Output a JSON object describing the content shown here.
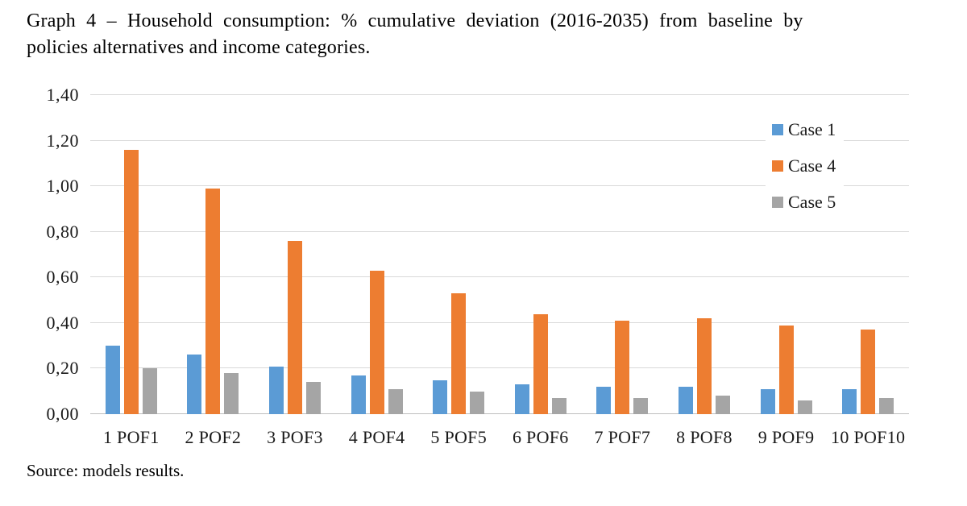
{
  "title_lines": [
    "Graph 4 – Household consumption: % cumulative deviation (2016-2035) from baseline by",
    "policies alternatives and income categories."
  ],
  "source_note": "Source: models results.",
  "colors": {
    "case1": "#5B9BD5",
    "case4": "#ED7D31",
    "case5": "#A5A5A5",
    "gridline": "#D9D9D9",
    "axis_line": "#BFBFBF",
    "text": "#000000"
  },
  "chart_data": {
    "type": "bar",
    "title": "Graph 4 – Household consumption: % cumulative deviation (2016-2035) from baseline by policies alternatives and income categories.",
    "categories": [
      "1 POF1",
      "2 POF2",
      "3 POF3",
      "4 POF4",
      "5 POF5",
      "6 POF6",
      "7 POF7",
      "8 POF8",
      "9 POF9",
      "10 POF10"
    ],
    "series": [
      {
        "name": "Case 1",
        "color": "#5B9BD5",
        "values": [
          0.3,
          0.26,
          0.21,
          0.17,
          0.15,
          0.13,
          0.12,
          0.12,
          0.11,
          0.11
        ]
      },
      {
        "name": "Case 4",
        "color": "#ED7D31",
        "values": [
          1.16,
          0.99,
          0.76,
          0.63,
          0.53,
          0.44,
          0.41,
          0.42,
          0.39,
          0.37
        ]
      },
      {
        "name": "Case 5",
        "color": "#A5A5A5",
        "values": [
          0.2,
          0.18,
          0.14,
          0.11,
          0.1,
          0.07,
          0.07,
          0.08,
          0.06,
          0.07
        ]
      }
    ],
    "xlabel": "",
    "ylabel": "",
    "ylim": [
      0,
      1.4
    ],
    "ytick_step": 0.2,
    "ytick_labels": [
      "0,00",
      "0,20",
      "0,40",
      "0,60",
      "0,80",
      "1,00",
      "1,20",
      "1,40"
    ],
    "decimal_separator": ",",
    "grid": true,
    "legend_position": "top-right",
    "legend_entries": [
      "Case 1",
      "Case 4",
      "Case 5"
    ]
  }
}
